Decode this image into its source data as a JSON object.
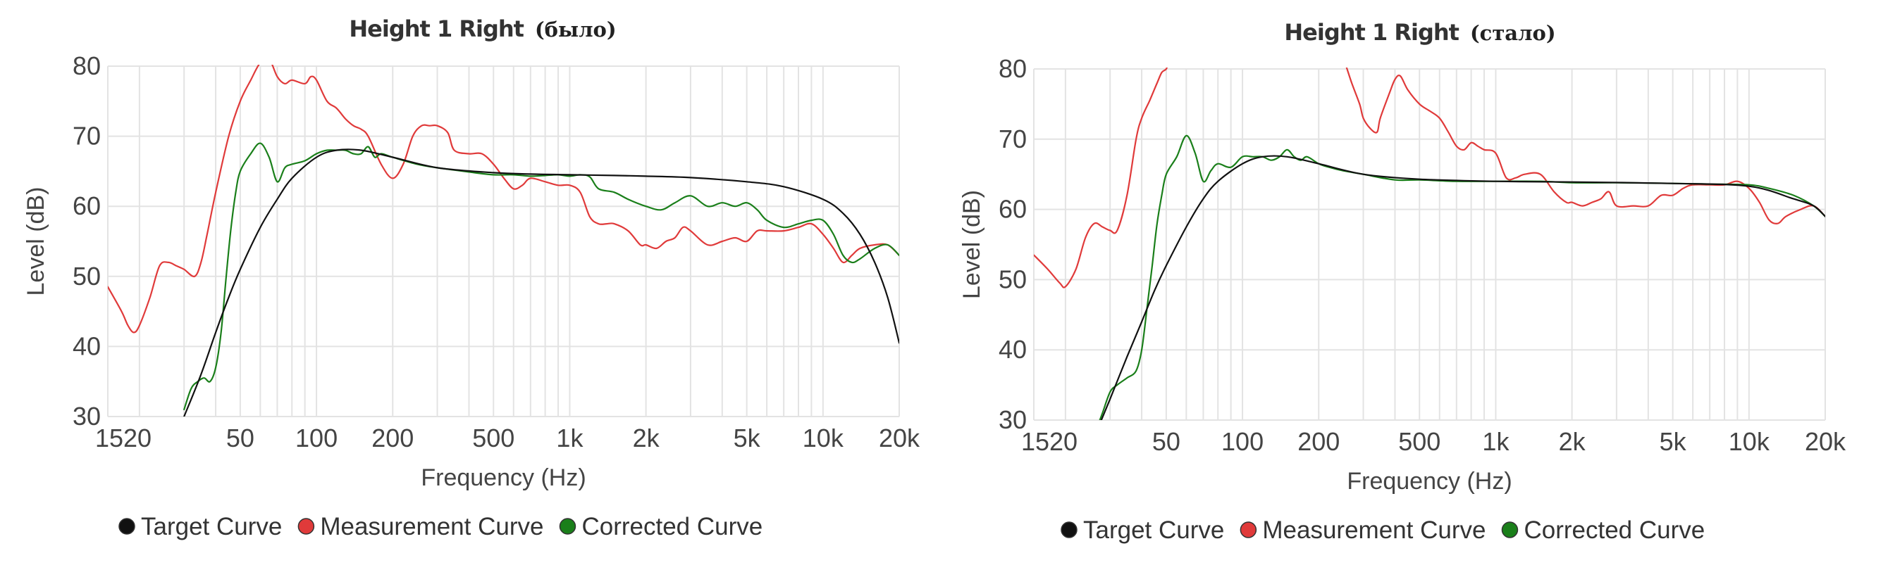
{
  "colors": {
    "target": "#111111",
    "measurement": "#e03a3a",
    "corrected": "#1a7f1a",
    "grid": "#e3e3e3"
  },
  "chart_data": [
    {
      "type": "line",
      "title": "Height 1 Right",
      "subtitle": "(было)",
      "xlabel": "Frequency (Hz)",
      "ylabel": "Level (dB)",
      "x_scale": "log",
      "xlim": [
        15,
        20000
      ],
      "ylim": [
        30,
        80
      ],
      "y_ticks": [
        30,
        40,
        50,
        60,
        70,
        80
      ],
      "x_ticks": [
        {
          "value": 15,
          "label": "15"
        },
        {
          "value": 20,
          "label": "20"
        },
        {
          "value": 50,
          "label": "50"
        },
        {
          "value": 100,
          "label": "100"
        },
        {
          "value": 200,
          "label": "200"
        },
        {
          "value": 500,
          "label": "500"
        },
        {
          "value": 1000,
          "label": "1k"
        },
        {
          "value": 2000,
          "label": "2k"
        },
        {
          "value": 5000,
          "label": "5k"
        },
        {
          "value": 10000,
          "label": "10k"
        },
        {
          "value": 20000,
          "label": "20k"
        }
      ],
      "grid": true,
      "legend_position": "bottom",
      "series": [
        {
          "name": "Target Curve",
          "color": "#111111",
          "x": [
            30,
            35,
            40,
            45,
            50,
            60,
            70,
            80,
            100,
            120,
            150,
            200,
            300,
            500,
            700,
            1000,
            1500,
            2000,
            3000,
            5000,
            7000,
            10000,
            12000,
            14000,
            16000,
            18000,
            20000
          ],
          "y": [
            30,
            36,
            42,
            47,
            51,
            57,
            61,
            64,
            67,
            68,
            68,
            67,
            65.5,
            64.8,
            64.6,
            64.5,
            64.4,
            64.3,
            64.1,
            63.5,
            62.8,
            61,
            59,
            56,
            52,
            47,
            40.5
          ]
        },
        {
          "name": "Measurement Curve",
          "color": "#e03a3a",
          "x": [
            15,
            17,
            18,
            19,
            20,
            22,
            24,
            26,
            28,
            30,
            33,
            35,
            37,
            40,
            45,
            50,
            55,
            60,
            65,
            70,
            75,
            80,
            90,
            95,
            100,
            110,
            120,
            130,
            140,
            150,
            160,
            180,
            200,
            220,
            240,
            260,
            280,
            300,
            330,
            350,
            400,
            450,
            500,
            550,
            600,
            650,
            700,
            800,
            900,
            1000,
            1100,
            1200,
            1300,
            1400,
            1500,
            1700,
            1900,
            2000,
            2200,
            2400,
            2600,
            2800,
            3000,
            3500,
            4000,
            4500,
            5000,
            5500,
            6000,
            7000,
            8000,
            9000,
            10000,
            11000,
            12000,
            13000,
            14000,
            16000,
            18000,
            20000
          ],
          "y": [
            48.5,
            45,
            43,
            42,
            43,
            47,
            51.5,
            52,
            51.5,
            51,
            50,
            52,
            56,
            62,
            70,
            75,
            78,
            80.5,
            81,
            78.5,
            77.5,
            78,
            77.5,
            78.5,
            78,
            75,
            74,
            72.5,
            71.5,
            71,
            70,
            66,
            64,
            66,
            70,
            71.5,
            71.5,
            71.5,
            70.5,
            68,
            67.5,
            67.5,
            66,
            64,
            62.5,
            63,
            64,
            63.5,
            63,
            63,
            62,
            58.5,
            57.5,
            57.5,
            57.5,
            56.5,
            54.5,
            54.5,
            54,
            55,
            55.5,
            57,
            56.5,
            54.5,
            55,
            55.5,
            55,
            56.5,
            56.5,
            56.5,
            57,
            57.5,
            56,
            54,
            52,
            53,
            54,
            54.5,
            54.5,
            53
          ]
        },
        {
          "name": "Corrected Curve",
          "color": "#1a7f1a",
          "x": [
            30,
            32,
            34,
            36,
            38,
            40,
            42,
            44,
            46,
            48,
            50,
            55,
            60,
            65,
            70,
            75,
            80,
            90,
            100,
            110,
            120,
            130,
            140,
            150,
            160,
            170,
            180,
            200,
            250,
            300,
            400,
            500,
            600,
            700,
            800,
            900,
            1000,
            1100,
            1200,
            1300,
            1500,
            1700,
            2000,
            2300,
            2600,
            3000,
            3500,
            4000,
            4500,
            5000,
            5500,
            6000,
            7000,
            8000,
            9000,
            10000,
            11000,
            12000,
            13000,
            14000,
            16000,
            18000,
            20000
          ],
          "y": [
            31,
            34,
            35,
            35.5,
            35,
            37,
            42,
            50,
            57,
            62,
            65,
            67.5,
            69,
            67,
            63.5,
            65.5,
            66,
            66.5,
            67.5,
            68,
            68,
            68,
            67.5,
            67.5,
            68.5,
            67,
            67.5,
            67,
            66,
            65.5,
            64.9,
            64.5,
            64.5,
            64.3,
            64.4,
            64.5,
            64.3,
            64.5,
            64.2,
            62.5,
            62,
            61,
            60,
            59.5,
            60.5,
            61.5,
            60,
            60.5,
            60,
            60.5,
            59.5,
            58,
            57,
            57.5,
            58,
            58,
            56,
            53,
            52,
            52.5,
            54,
            54.5,
            53
          ]
        }
      ]
    },
    {
      "type": "line",
      "title": "Height 1 Right",
      "subtitle": "(стало)",
      "xlabel": "Frequency (Hz)",
      "ylabel": "Level (dB)",
      "x_scale": "log",
      "xlim": [
        15,
        20000
      ],
      "ylim": [
        30,
        80
      ],
      "y_ticks": [
        30,
        40,
        50,
        60,
        70,
        80
      ],
      "x_ticks": [
        {
          "value": 15,
          "label": "15"
        },
        {
          "value": 20,
          "label": "20"
        },
        {
          "value": 50,
          "label": "50"
        },
        {
          "value": 100,
          "label": "100"
        },
        {
          "value": 200,
          "label": "200"
        },
        {
          "value": 500,
          "label": "500"
        },
        {
          "value": 1000,
          "label": "1k"
        },
        {
          "value": 2000,
          "label": "2k"
        },
        {
          "value": 5000,
          "label": "5k"
        },
        {
          "value": 10000,
          "label": "10k"
        },
        {
          "value": 20000,
          "label": "20k"
        }
      ],
      "grid": true,
      "legend_position": "bottom",
      "series": [
        {
          "name": "Target Curve",
          "color": "#111111",
          "x": [
            27,
            30,
            35,
            40,
            45,
            50,
            60,
            70,
            80,
            100,
            120,
            150,
            200,
            300,
            500,
            1000,
            2000,
            5000,
            10000,
            15000,
            18000,
            20000
          ],
          "y": [
            29,
            33,
            39,
            44,
            48.5,
            52,
            57.5,
            61.5,
            64,
            66.5,
            67.5,
            67.5,
            66.5,
            65,
            64.3,
            64,
            63.9,
            63.7,
            63.3,
            61.5,
            60.5,
            59
          ]
        },
        {
          "name": "Measurement Curve",
          "color": "#e03a3a",
          "x": [
            15,
            17,
            19,
            20,
            22,
            24,
            26,
            28,
            30,
            32,
            35,
            38,
            40,
            43,
            46,
            48,
            50,
            51,
            52,
            240,
            250,
            270,
            290,
            300,
            320,
            340,
            350,
            380,
            400,
            420,
            450,
            500,
            550,
            600,
            650,
            700,
            750,
            800,
            850,
            900,
            1000,
            1100,
            1200,
            1300,
            1500,
            1700,
            1900,
            2000,
            2200,
            2400,
            2600,
            2800,
            3000,
            3500,
            4000,
            4500,
            5000,
            5500,
            6000,
            7000,
            8000,
            9000,
            10000,
            11000,
            12000,
            13000,
            14000,
            16000,
            18000,
            20000
          ],
          "y": [
            53.5,
            51.5,
            49.5,
            49,
            51.5,
            56,
            58,
            57.5,
            57,
            57,
            62,
            70,
            73,
            75.5,
            78,
            79.5,
            80,
            81,
            82,
            82,
            81.5,
            78,
            75,
            73,
            71.5,
            71,
            73,
            76.5,
            78.5,
            79,
            77,
            75,
            74,
            73,
            71,
            69,
            68.5,
            69.5,
            69,
            68.5,
            68,
            64.5,
            64.5,
            65,
            65,
            62.5,
            61,
            61,
            60.5,
            61,
            61.5,
            62.5,
            60.5,
            60.5,
            60.5,
            62,
            62,
            63,
            63.5,
            63.5,
            63.5,
            64,
            63,
            61,
            58.5,
            58,
            59,
            60,
            60.5,
            59
          ]
        },
        {
          "name": "Corrected Curve",
          "color": "#1a7f1a",
          "x": [
            27,
            28,
            30,
            32,
            35,
            38,
            40,
            42,
            44,
            46,
            48,
            50,
            55,
            60,
            65,
            70,
            75,
            80,
            90,
            100,
            110,
            120,
            130,
            140,
            150,
            160,
            170,
            180,
            200,
            220,
            250,
            300,
            400,
            500,
            700,
            1000,
            1500,
            2000,
            3000,
            5000,
            7000,
            10000,
            12000,
            15000,
            18000,
            20000
          ],
          "y": [
            29.5,
            31,
            34,
            35,
            36,
            37,
            40,
            46,
            52,
            58,
            62,
            65,
            67.5,
            70.5,
            68,
            64,
            65.5,
            66.5,
            66,
            67.5,
            67.5,
            67.5,
            67,
            67.5,
            68.5,
            67.5,
            67,
            67.5,
            66.5,
            66,
            65.5,
            65,
            64.2,
            64.2,
            64,
            64,
            64,
            63.8,
            63.8,
            63.7,
            63.6,
            63.5,
            63,
            62,
            60.5,
            59
          ]
        }
      ]
    }
  ]
}
